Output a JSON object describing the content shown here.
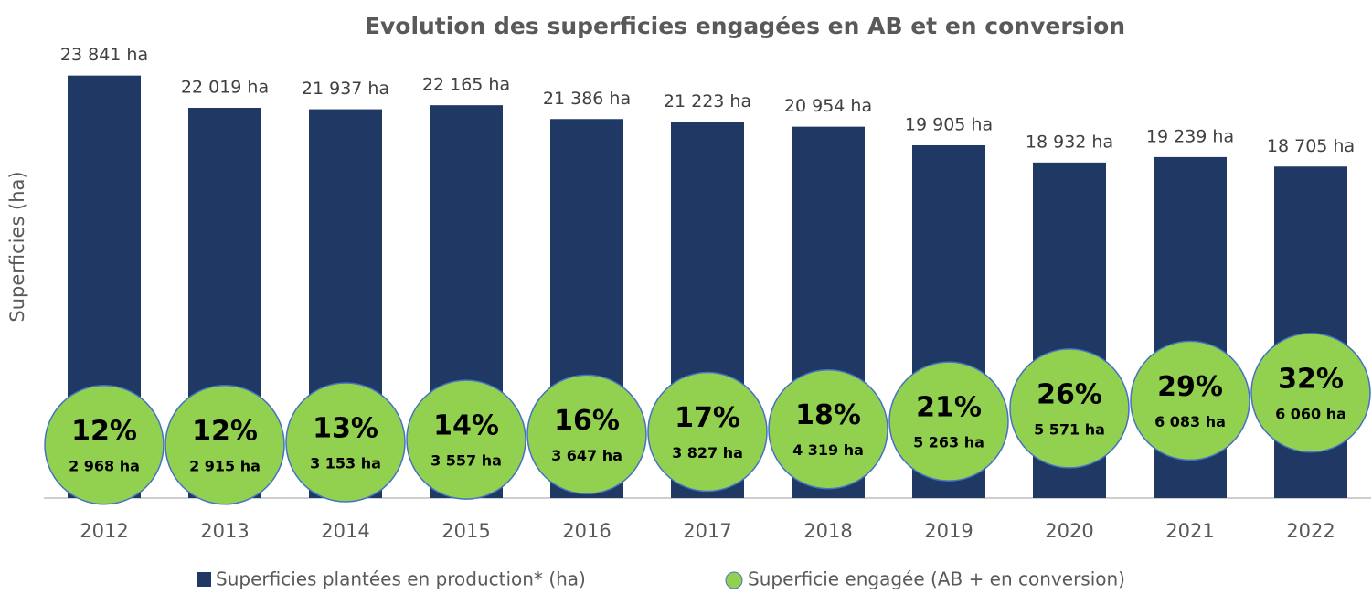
{
  "chart_data": {
    "type": "bar",
    "title": "Evolution des superficies engagées en AB et en conversion",
    "y_label": "Superficies (ha)",
    "categories": [
      "2012",
      "2013",
      "2014",
      "2015",
      "2016",
      "2017",
      "2018",
      "2019",
      "2020",
      "2021",
      "2022"
    ],
    "ylim": [
      0,
      28000
    ],
    "series": [
      {
        "name": "Superficies plantées en production* (ha)",
        "color": "#1f3864",
        "values": [
          23841,
          22019,
          21937,
          22165,
          21386,
          21223,
          20954,
          19905,
          18932,
          19239,
          18705
        ],
        "value_labels": [
          "23 841 ha",
          "22 019 ha",
          "21 937 ha",
          "22 165 ha",
          "21 386 ha",
          "21 223 ha",
          "20 954 ha",
          "19 905 ha",
          "18 932 ha",
          "19 239 ha",
          "18 705 ha"
        ]
      },
      {
        "name": "Superficie engagée (AB + en conversion)",
        "color": "#92d050",
        "axis": "y2",
        "values": [
          2968,
          2915,
          3153,
          3557,
          3647,
          3827,
          4319,
          5263,
          5571,
          6083,
          6060
        ],
        "value_labels": [
          "2 968 ha",
          "2 915 ha",
          "3 153 ha",
          "3 557 ha",
          "3 647 ha",
          "3 827 ha",
          "4 319 ha",
          "5 263 ha",
          "5 571 ha",
          "6 083 ha",
          "6 060 ha"
        ],
        "shares": [
          12,
          12,
          13,
          14,
          16,
          17,
          18,
          21,
          26,
          29,
          32
        ],
        "share_labels": [
          "12%",
          "12%",
          "13%",
          "14%",
          "16%",
          "17%",
          "18%",
          "21%",
          "26%",
          "29%",
          "32%"
        ]
      }
    ]
  }
}
